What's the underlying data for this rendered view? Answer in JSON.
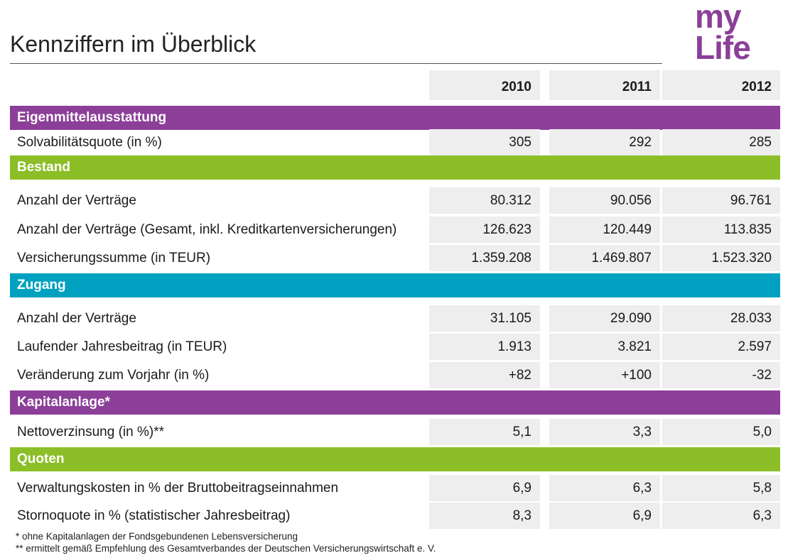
{
  "title": "Kennziffern im Überblick",
  "logo": {
    "line1": "my",
    "line2": "Life",
    "color": "#8b3f98"
  },
  "colors": {
    "purple": "#8b3f98",
    "green": "#8cbe27",
    "teal": "#00a1c0",
    "cell_bg": "#eeeeee"
  },
  "years": [
    "2010",
    "2011",
    "2012"
  ],
  "sections": [
    {
      "label": "Eigenmittelausstattung",
      "color": "purple",
      "rows": [
        {
          "label": "Solvabilitätsquote (in %)",
          "values": [
            "305",
            "292",
            "285"
          ]
        }
      ]
    },
    {
      "label": "Bestand",
      "color": "green",
      "rows": [
        {
          "label": "Anzahl der Verträge",
          "values": [
            "80.312",
            "90.056",
            "96.761"
          ]
        },
        {
          "label": "Anzahl der Verträge (Gesamt, inkl. Kreditkartenversicherungen)",
          "values": [
            "126.623",
            "120.449",
            "113.835"
          ]
        },
        {
          "label": "Versicherungssumme (in TEUR)",
          "values": [
            "1.359.208",
            "1.469.807",
            "1.523.320"
          ]
        }
      ]
    },
    {
      "label": "Zugang",
      "color": "teal",
      "rows": [
        {
          "label": "Anzahl der Verträge",
          "values": [
            "31.105",
            "29.090",
            "28.033"
          ]
        },
        {
          "label": "Laufender Jahresbeitrag (in TEUR)",
          "values": [
            "1.913",
            "3.821",
            "2.597"
          ]
        },
        {
          "label": "Veränderung zum Vorjahr (in %)",
          "values": [
            "+82",
            "+100",
            "-32"
          ]
        }
      ]
    },
    {
      "label": "Kapitalanlage*",
      "color": "purple",
      "rows": [
        {
          "label": "Nettoverzinsung (in %)**",
          "values": [
            "5,1",
            "3,3",
            "5,0"
          ]
        }
      ]
    },
    {
      "label": "Quoten",
      "color": "green",
      "rows": [
        {
          "label": "Verwaltungskosten in % der Bruttobeitragseinnahmen",
          "values": [
            "6,9",
            "6,3",
            "5,8"
          ]
        },
        {
          "label": "Stornoquote in % (statistischer Jahresbeitrag)",
          "values": [
            "8,3",
            "6,9",
            "6,3"
          ]
        }
      ]
    }
  ],
  "footnotes": [
    "* ohne Kapitalanlagen der Fondsgebundenen Lebensversicherung",
    "** ermittelt gemäß Empfehlung des Gesamtverbandes der Deutschen Versicherungswirtschaft e. V."
  ]
}
